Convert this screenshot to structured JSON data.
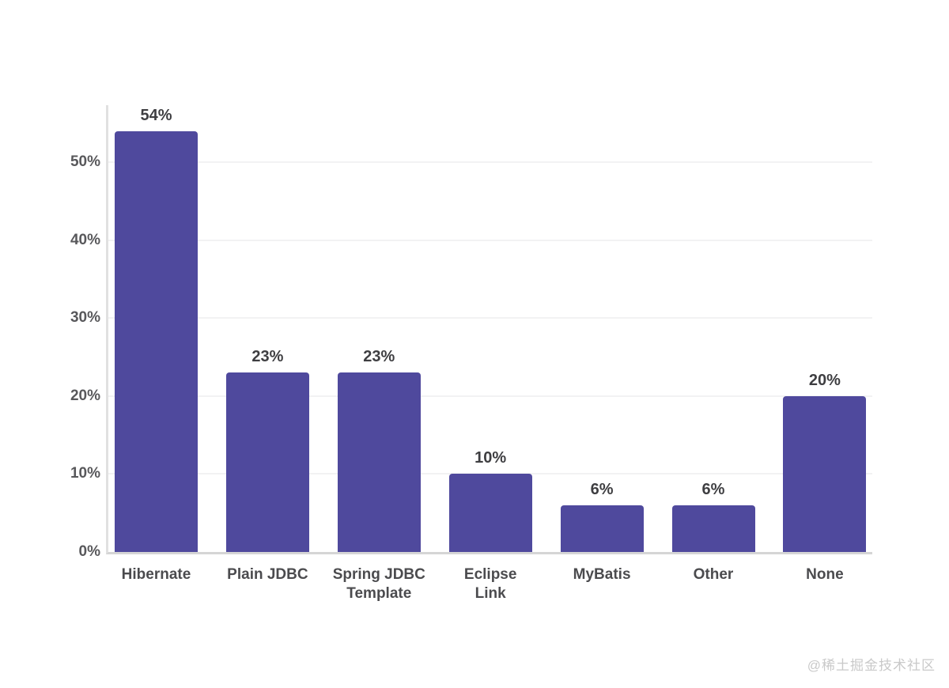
{
  "watermark": {
    "text": "@稀土掘金技术社区"
  },
  "chart_data": {
    "type": "bar",
    "title": "",
    "xlabel": "",
    "ylabel": "",
    "categories": [
      "Hibernate",
      "Plain JDBC",
      "Spring JDBC Template",
      "Eclipse Link",
      "MyBatis",
      "Other",
      "None"
    ],
    "category_label_lines": [
      [
        "Hibernate"
      ],
      [
        "Plain JDBC"
      ],
      [
        "Spring JDBC",
        "Template"
      ],
      [
        "Eclipse",
        "Link"
      ],
      [
        "MyBatis"
      ],
      [
        "Other"
      ],
      [
        "None"
      ]
    ],
    "values": [
      54,
      23,
      23,
      10,
      6,
      6,
      20
    ],
    "value_labels": [
      "54%",
      "23%",
      "23%",
      "10%",
      "6%",
      "6%",
      "20%"
    ],
    "y_ticks": [
      {
        "value": 0,
        "label": "0%"
      },
      {
        "value": 10,
        "label": "10%"
      },
      {
        "value": 20,
        "label": "20%"
      },
      {
        "value": 30,
        "label": "30%"
      },
      {
        "value": 40,
        "label": "40%"
      },
      {
        "value": 50,
        "label": "50%"
      }
    ],
    "ylim": [
      0,
      57.4
    ],
    "grid": "faint horizontal lines at each 10% tick",
    "legend": "none",
    "colors": {
      "background": "#ffffff",
      "bar": "#4f499d",
      "value_label": "#3e3e41",
      "tick_label": "#58585b",
      "category_label": "#4b4b4e",
      "gridline": "#f2f2f3",
      "baseline": "#d5d5d5",
      "axis_line": "#e1e1e1",
      "watermark": "#c9c9c9"
    }
  }
}
